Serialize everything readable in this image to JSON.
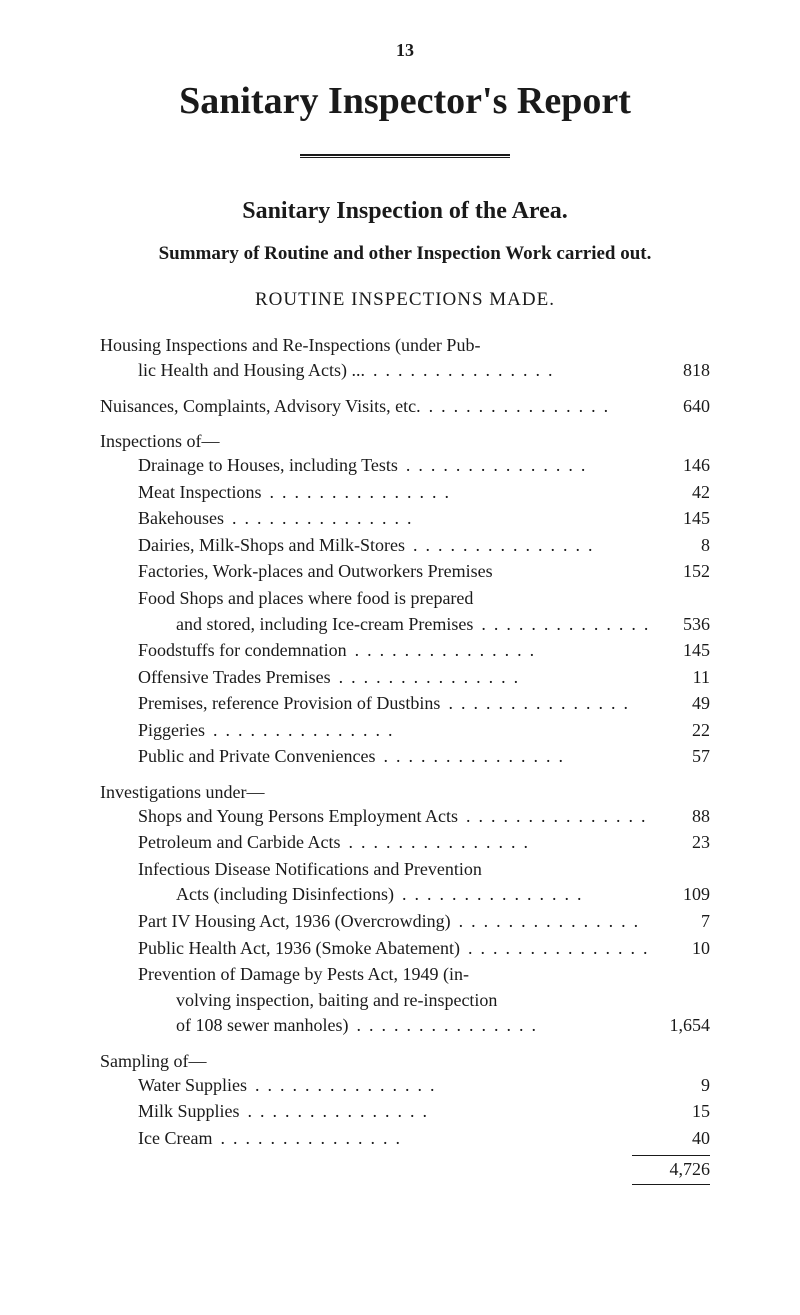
{
  "page_number": "13",
  "main_title": "Sanitary Inspector's Report",
  "section_title": "Sanitary Inspection of the Area.",
  "summary_title": "Summary of Routine and other Inspection Work carried out.",
  "routine_heading": "ROUTINE INSPECTIONS MADE.",
  "top_entries": [
    {
      "label_lines": [
        "Housing Inspections and Re-Inspections (under Pub-",
        "lic Health and Housing Acts) ..."
      ],
      "indent_last": 1,
      "value": "818"
    },
    {
      "label_lines": [
        "Nuisances, Complaints, Advisory Visits, etc."
      ],
      "indent_last": 0,
      "value": "640"
    }
  ],
  "groups": [
    {
      "heading": "Inspections of—",
      "items": [
        {
          "label_lines": [
            "Drainage to Houses, including Tests"
          ],
          "value": "146"
        },
        {
          "label_lines": [
            "Meat Inspections"
          ],
          "value": "42"
        },
        {
          "label_lines": [
            "Bakehouses"
          ],
          "value": "145"
        },
        {
          "label_lines": [
            "Dairies, Milk-Shops and Milk-Stores"
          ],
          "value": "8"
        },
        {
          "label_lines": [
            "Factories, Work-places and Outworkers Premises"
          ],
          "value": "152",
          "no_dots": true
        },
        {
          "label_lines": [
            "Food Shops and places where food is prepared",
            "and stored, including Ice-cream Premises"
          ],
          "indent_last": 2,
          "value": "536"
        },
        {
          "label_lines": [
            "Foodstuffs for condemnation"
          ],
          "value": "145"
        },
        {
          "label_lines": [
            "Offensive Trades Premises"
          ],
          "value": "11"
        },
        {
          "label_lines": [
            "Premises, reference Provision of Dustbins"
          ],
          "value": "49"
        },
        {
          "label_lines": [
            "Piggeries"
          ],
          "value": "22"
        },
        {
          "label_lines": [
            "Public and Private Conveniences"
          ],
          "value": "57"
        }
      ]
    },
    {
      "heading": "Investigations under—",
      "items": [
        {
          "label_lines": [
            "Shops and Young Persons Employment Acts"
          ],
          "value": "88"
        },
        {
          "label_lines": [
            "Petroleum and Carbide Acts"
          ],
          "value": "23"
        },
        {
          "label_lines": [
            "Infectious Disease Notifications and Prevention",
            "Acts (including Disinfections)"
          ],
          "indent_last": 2,
          "value": "109"
        },
        {
          "label_lines": [
            "Part IV Housing Act, 1936 (Overcrowding)"
          ],
          "value": "7"
        },
        {
          "label_lines": [
            "Public Health Act, 1936 (Smoke Abatement)"
          ],
          "value": "10"
        },
        {
          "label_lines": [
            "Prevention of Damage by Pests Act, 1949 (in-",
            "volving inspection, baiting and re-inspection",
            "of 108 sewer manholes)"
          ],
          "indent_last": 2,
          "value": "1,654"
        }
      ]
    },
    {
      "heading": "Sampling of—",
      "items": [
        {
          "label_lines": [
            "Water Supplies"
          ],
          "value": "9"
        },
        {
          "label_lines": [
            "Milk Supplies"
          ],
          "value": "15"
        },
        {
          "label_lines": [
            "Ice Cream"
          ],
          "value": "40"
        }
      ]
    }
  ],
  "total_value": "4,726",
  "colors": {
    "background": "#ffffff",
    "text": "#1a1a1a"
  }
}
